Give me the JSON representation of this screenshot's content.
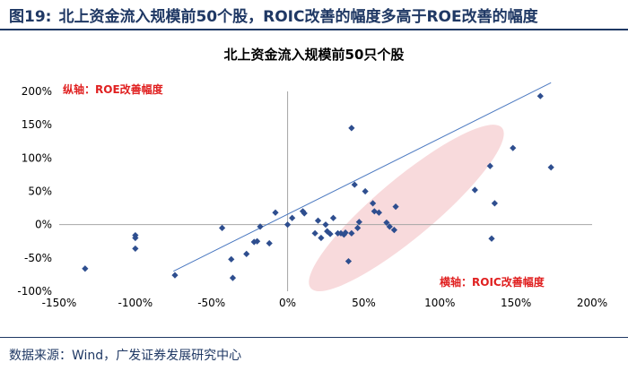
{
  "header": {
    "figure_label": "图19:",
    "figure_title": "北上资金流入规模前50个股，ROIC改善的幅度多高于ROE改善的幅度"
  },
  "footer": {
    "source": "数据来源：Wind，广发证券发展研究中心"
  },
  "colors": {
    "header_text": "#1f3864",
    "points": "#2e4e8f",
    "trendline": "#4a78c0",
    "ellipse_fill": "#f7d4d6",
    "annotation_text": "#e02020"
  },
  "chart_data": {
    "type": "scatter",
    "title": "北上资金流入规模前50只个股",
    "xlim": [
      -150,
      200
    ],
    "ylim": [
      -100,
      200
    ],
    "x_ticks": [
      -150,
      -100,
      -50,
      0,
      50,
      100,
      150,
      200
    ],
    "y_ticks": [
      -100,
      -50,
      0,
      50,
      100,
      150,
      200
    ],
    "x_tick_labels": [
      "-150%",
      "-100%",
      "-50%",
      "0%",
      "50%",
      "100%",
      "150%",
      "200%"
    ],
    "y_tick_labels": [
      "-100%",
      "-50%",
      "0%",
      "50%",
      "100%",
      "150%",
      "200%"
    ],
    "grid": false,
    "annotations": {
      "y_axis_note": "纵轴：ROE改善幅度",
      "x_axis_note": "横轴：ROIC改善幅度"
    },
    "trendline": {
      "x": [
        -75,
        173
      ],
      "y": [
        -70,
        213
      ]
    },
    "highlight_ellipse": {
      "center": [
        78,
        25
      ],
      "rx": 82,
      "ry": 44,
      "angle_deg": 40
    },
    "points": [
      [
        -133,
        -66
      ],
      [
        -100,
        -16
      ],
      [
        -100,
        -20
      ],
      [
        -100,
        -36
      ],
      [
        -74,
        -76
      ],
      [
        -43,
        -5
      ],
      [
        -37,
        -52
      ],
      [
        -36,
        -80
      ],
      [
        -27,
        -44
      ],
      [
        -22,
        -26
      ],
      [
        -20,
        -25
      ],
      [
        -18,
        -3
      ],
      [
        -12,
        -28
      ],
      [
        -8,
        18
      ],
      [
        0,
        0
      ],
      [
        3,
        10
      ],
      [
        10,
        20
      ],
      [
        11,
        17
      ],
      [
        18,
        -13
      ],
      [
        20,
        6
      ],
      [
        22,
        -20
      ],
      [
        25,
        0
      ],
      [
        26,
        -10
      ],
      [
        28,
        -14
      ],
      [
        30,
        10
      ],
      [
        33,
        -13
      ],
      [
        35,
        -13
      ],
      [
        37,
        -15
      ],
      [
        38,
        -12
      ],
      [
        40,
        -55
      ],
      [
        42,
        145
      ],
      [
        42,
        -13
      ],
      [
        44,
        60
      ],
      [
        46,
        -5
      ],
      [
        47,
        4
      ],
      [
        51,
        50
      ],
      [
        56,
        32
      ],
      [
        57,
        20
      ],
      [
        60,
        18
      ],
      [
        65,
        3
      ],
      [
        67,
        -3
      ],
      [
        70,
        -8
      ],
      [
        71,
        27
      ],
      [
        123,
        52
      ],
      [
        133,
        88
      ],
      [
        134,
        -21
      ],
      [
        136,
        32
      ],
      [
        148,
        115
      ],
      [
        166,
        193
      ],
      [
        173,
        86
      ]
    ]
  }
}
